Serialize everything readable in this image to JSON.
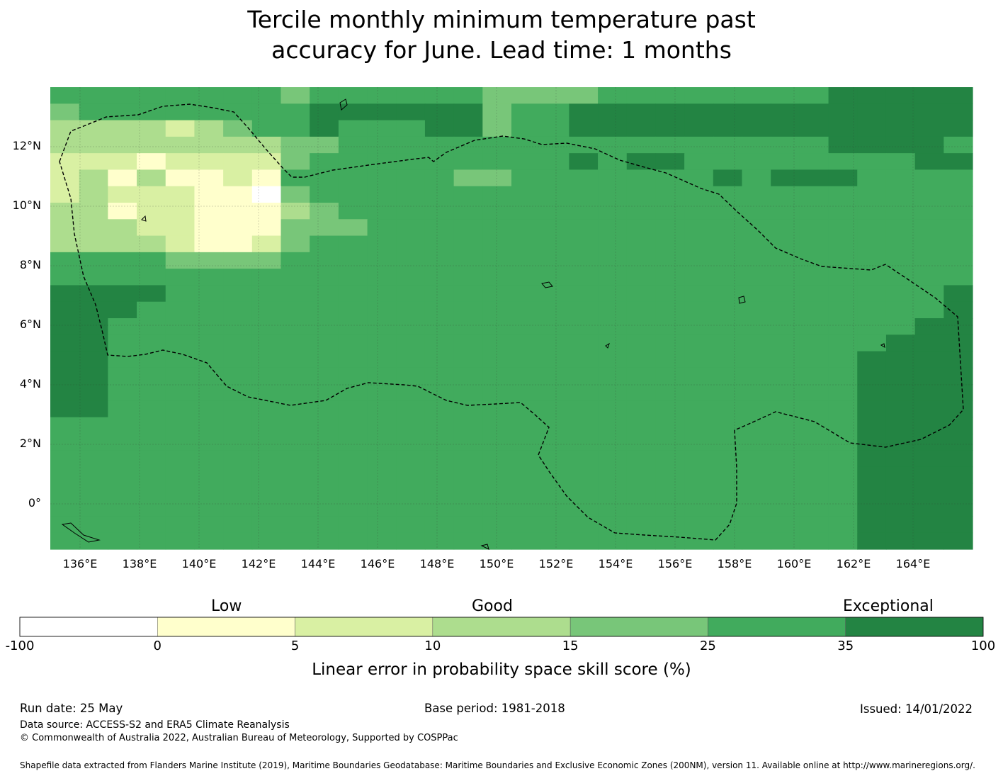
{
  "title_line1": "Tercile monthly minimum temperature past",
  "title_line2": "accuracy for June. Lead time: 1 months",
  "map": {
    "lat_labels": [
      "12°N",
      "10°N",
      "8°N",
      "6°N",
      "4°N",
      "2°N",
      "0°"
    ],
    "lon_labels": [
      "136°E",
      "138°E",
      "140°E",
      "142°E",
      "144°E",
      "146°E",
      "148°E",
      "150°E",
      "152°E",
      "154°E",
      "156°E",
      "158°E",
      "160°E",
      "162°E",
      "164°E"
    ],
    "cell_categories": [
      "55555555455555544445555555566666",
      "45555555566666645566666666666666",
      "33332345565556645566666666666666",
      "33333333445555555555555555566665",
      "22212222455555555565665555555566",
      "23131121555555445555555656665555",
      "23222110455555555555555555555555",
      "33122111345555555555555555555555",
      "33322111444555555555555555555555",
      "33332112455555555555555555555555",
      "55554444555555555555555555555555",
      "55555555555555555555555555555555",
      "66665555555555555555555555555556",
      "66655555555555555555555555555556",
      "66555555555555555555555555555566",
      "66555555555555555555555555555666",
      "66555555555555555555555555556666",
      "66555555555555555555555555556666",
      "66555555555555555555555555556666",
      "66555555555555555555555555556666",
      "55555555555555555555555555556666",
      "55555555555555555555555555556666",
      "55555555555555555555555555556666",
      "55555555555555555555555555556666",
      "55555555555555555555555555556666",
      "55555555555555555555555555556666",
      "55555555555555555555555555556666",
      "55555555555555555555555555556666"
    ]
  },
  "colorbar": {
    "categories": [
      "Low",
      "Good",
      "Exceptional"
    ],
    "ticks": [
      "-100",
      "0",
      "5",
      "10",
      "15",
      "25",
      "35",
      "100"
    ],
    "colors": [
      "#ffffff",
      "#ffffcc",
      "#d9f0a3",
      "#addd8e",
      "#78c679",
      "#41ab5d",
      "#238443"
    ],
    "label": "Linear error in probability space skill score (%)"
  },
  "footer": {
    "run_date": "Run date: 25 May",
    "base_period": "Base period: 1981-2018",
    "issued": "Issued: 14/01/2022",
    "data_source": "Data source: ACCESS-S2 and ERA5 Climate Reanalysis",
    "copyright": "© Commonwealth of Australia 2022, Australian Bureau of Meteorology, Supported by COSPPac",
    "shapefile": "Shapefile data extracted from Flanders Marine Institute (2019), Maritime Boundaries Geodatabase: Maritime Boundaries and Exclusive Economic Zones (200NM), version 11. Available online at http://www.marineregions.org/."
  }
}
